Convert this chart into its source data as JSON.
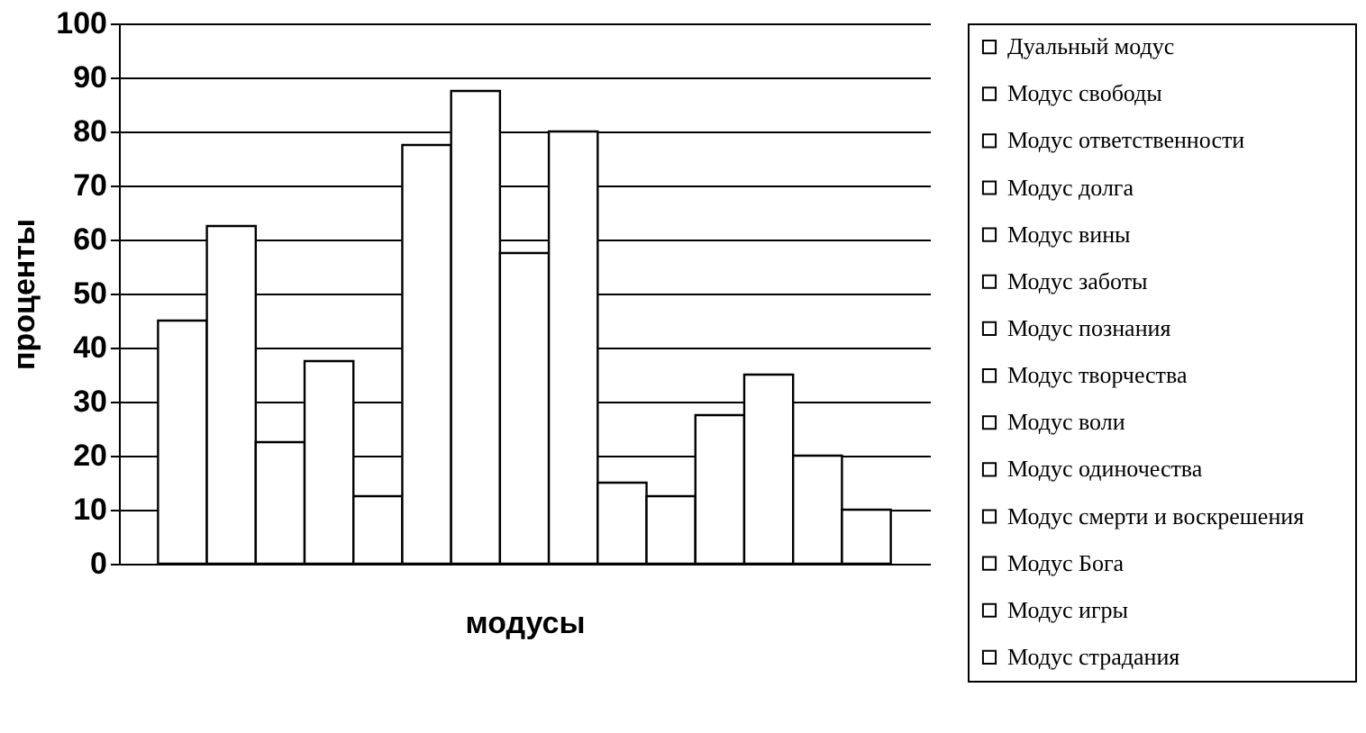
{
  "chart_data": {
    "type": "bar",
    "xlabel": "модусы",
    "ylabel": "проценты",
    "categories": [
      null
    ],
    "ylim": [
      0,
      100
    ],
    "yticks": [
      0,
      10,
      20,
      30,
      40,
      50,
      60,
      70,
      80,
      90,
      100
    ],
    "grid": "y",
    "legend": "right",
    "series": [
      {
        "name": "Дуальный модус",
        "color": "#ffffff",
        "values": [
          45
        ]
      },
      {
        "name": "Модус свободы",
        "color": "#ffffff",
        "values": [
          62.5
        ]
      },
      {
        "name": "Модус ответственности",
        "color": "#ffffff",
        "values": [
          22.5
        ]
      },
      {
        "name": "Модус долга",
        "color": "#ffffff",
        "values": [
          37.5
        ]
      },
      {
        "name": "Модус вины",
        "color": "#ffffff",
        "values": [
          12.5
        ]
      },
      {
        "name": "Модус заботы",
        "color": "#ffffff",
        "values": [
          77.5
        ]
      },
      {
        "name": "Модус познания",
        "color": "#ffffff",
        "values": [
          87.5
        ]
      },
      {
        "name": "Модус творчества",
        "color": "#ffffff",
        "values": [
          57.5
        ]
      },
      {
        "name": "Модус воли",
        "color": "#ffffff",
        "values": [
          80
        ]
      },
      {
        "name": "Модус одиночества",
        "color": "#ffffff",
        "values": [
          15
        ]
      },
      {
        "name": "Модус смерти и воскрешения",
        "color": "#ffffff",
        "values": [
          12.5
        ]
      },
      {
        "name": "Модус Бога",
        "color": "#ffffff",
        "values": [
          27.5
        ]
      },
      {
        "name": "Модус игры",
        "color": "#ffffff",
        "values": [
          35
        ]
      },
      {
        "name": "Модус страдания",
        "color": "#ffffff",
        "values": [
          20
        ]
      },
      {
        "color": "#ffffff",
        "values": [
          10
        ]
      }
    ]
  }
}
